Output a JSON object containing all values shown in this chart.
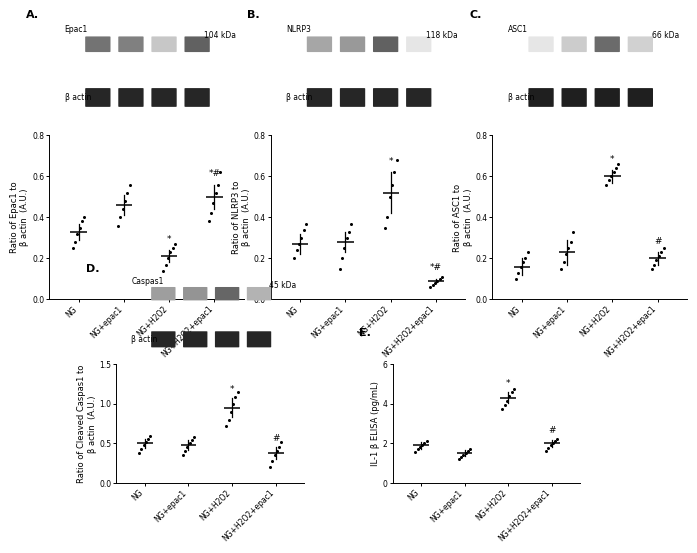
{
  "panel_A": {
    "wb_protein": "Epac1",
    "wb_kda": "104 kDa",
    "ylabel": "Ratio of Epac1 to\nβ actin  (A.U.)",
    "ylim": [
      0.0,
      0.8
    ],
    "yticks": [
      0.0,
      0.2,
      0.4,
      0.6,
      0.8
    ],
    "categories": [
      "NG",
      "NG+epac1",
      "NG+H2O2",
      "NG+H2O2+epac1"
    ],
    "means": [
      0.33,
      0.46,
      0.21,
      0.5
    ],
    "errors": [
      0.04,
      0.05,
      0.03,
      0.06
    ],
    "scatter": [
      [
        0.25,
        0.28,
        0.32,
        0.35,
        0.38,
        0.4
      ],
      [
        0.36,
        0.4,
        0.44,
        0.48,
        0.52,
        0.56
      ],
      [
        0.14,
        0.17,
        0.2,
        0.23,
        0.25,
        0.27
      ],
      [
        0.38,
        0.42,
        0.47,
        0.52,
        0.56,
        0.62
      ]
    ],
    "sig_labels": [
      "",
      "",
      "*",
      "*#"
    ],
    "prot_grays": [
      0.45,
      0.5,
      0.78,
      0.38
    ],
    "actin_grays": [
      0.15,
      0.15,
      0.15,
      0.15
    ]
  },
  "panel_B": {
    "wb_protein": "NLRP3",
    "wb_kda": "118 kDa",
    "ylabel": "Ratio of NLRP3 to\nβ actin  (A.U.)",
    "ylim": [
      0.0,
      0.8
    ],
    "yticks": [
      0.0,
      0.2,
      0.4,
      0.6,
      0.8
    ],
    "categories": [
      "NG",
      "NG+epac1",
      "NG+H2O2",
      "NG+H2O2+epac1"
    ],
    "means": [
      0.27,
      0.28,
      0.52,
      0.09
    ],
    "errors": [
      0.05,
      0.05,
      0.1,
      0.01
    ],
    "scatter": [
      [
        0.2,
        0.24,
        0.27,
        0.3,
        0.34,
        0.37
      ],
      [
        0.15,
        0.2,
        0.25,
        0.3,
        0.33,
        0.37
      ],
      [
        0.35,
        0.4,
        0.5,
        0.56,
        0.62,
        0.68
      ],
      [
        0.06,
        0.07,
        0.08,
        0.09,
        0.1,
        0.11
      ]
    ],
    "sig_labels": [
      "",
      "",
      "*",
      "*#"
    ],
    "prot_grays": [
      0.65,
      0.6,
      0.38,
      0.9
    ],
    "actin_grays": [
      0.15,
      0.15,
      0.15,
      0.15
    ]
  },
  "panel_C": {
    "wb_protein": "ASC1",
    "wb_kda": "66 kDa",
    "ylabel": "Ratio of ASC1 to\nβ actin  (A.U.)",
    "ylim": [
      0.0,
      0.8
    ],
    "yticks": [
      0.0,
      0.2,
      0.4,
      0.6,
      0.8
    ],
    "categories": [
      "NG",
      "NG+epac1",
      "NG+H2O2",
      "NG+H2O2+epac1"
    ],
    "means": [
      0.16,
      0.23,
      0.6,
      0.2
    ],
    "errors": [
      0.04,
      0.06,
      0.03,
      0.03
    ],
    "scatter": [
      [
        0.1,
        0.13,
        0.16,
        0.18,
        0.2,
        0.23
      ],
      [
        0.15,
        0.18,
        0.22,
        0.25,
        0.28,
        0.33
      ],
      [
        0.56,
        0.58,
        0.6,
        0.62,
        0.64,
        0.66
      ],
      [
        0.15,
        0.17,
        0.19,
        0.21,
        0.23,
        0.25
      ]
    ],
    "sig_labels": [
      "",
      "",
      "*",
      "#"
    ],
    "prot_grays": [
      0.9,
      0.8,
      0.42,
      0.82
    ],
    "actin_grays": [
      0.12,
      0.12,
      0.12,
      0.12
    ]
  },
  "panel_D": {
    "wb_protein": "Caspas1",
    "wb_kda": "45 kDa",
    "ylabel": "Ratio of Cleaved Caspas1 to\nβ actin  (A.U.)",
    "ylim": [
      0.0,
      1.5
    ],
    "yticks": [
      0.0,
      0.5,
      1.0,
      1.5
    ],
    "categories": [
      "NG",
      "NG+epac1",
      "NG+H2O2",
      "NG+H2O2+epac1"
    ],
    "means": [
      0.5,
      0.48,
      0.95,
      0.38
    ],
    "errors": [
      0.06,
      0.06,
      0.12,
      0.07
    ],
    "scatter": [
      [
        0.38,
        0.43,
        0.48,
        0.52,
        0.56,
        0.6
      ],
      [
        0.35,
        0.4,
        0.46,
        0.5,
        0.54,
        0.58
      ],
      [
        0.72,
        0.8,
        0.9,
        1.0,
        1.08,
        1.15
      ],
      [
        0.2,
        0.28,
        0.35,
        0.4,
        0.46,
        0.52
      ]
    ],
    "sig_labels": [
      "",
      "",
      "*",
      "#"
    ],
    "prot_grays": [
      0.62,
      0.58,
      0.4,
      0.7
    ],
    "actin_grays": [
      0.15,
      0.15,
      0.15,
      0.15
    ]
  },
  "panel_E": {
    "ylabel": "IL-1 β ELISA (pg/mL)",
    "ylim": [
      0,
      6
    ],
    "yticks": [
      0,
      2,
      4,
      6
    ],
    "categories": [
      "NG",
      "NG+epac1",
      "NG+H2O2",
      "NG+H2O2+epac1"
    ],
    "means": [
      1.9,
      1.5,
      4.3,
      2.0
    ],
    "errors": [
      0.18,
      0.15,
      0.28,
      0.18
    ],
    "scatter": [
      [
        1.55,
        1.7,
        1.82,
        1.92,
        2.02,
        2.12
      ],
      [
        1.2,
        1.3,
        1.42,
        1.52,
        1.62,
        1.72
      ],
      [
        3.75,
        3.95,
        4.15,
        4.38,
        4.58,
        4.75
      ],
      [
        1.6,
        1.75,
        1.9,
        2.02,
        2.12,
        2.22
      ]
    ],
    "sig_labels": [
      "",
      "",
      "*",
      "#"
    ]
  }
}
